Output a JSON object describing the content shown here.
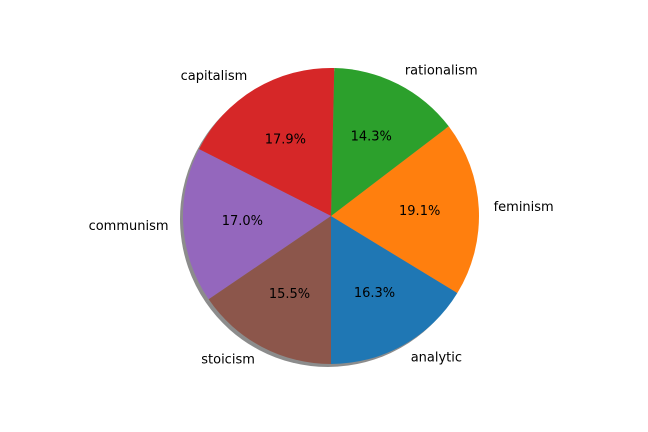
{
  "chart_data": {
    "type": "pie",
    "title": "",
    "categories": [
      "analytic",
      "feminism",
      "rationalism",
      "capitalism",
      "communism",
      "stoicism"
    ],
    "values": [
      16.3,
      19.1,
      14.3,
      17.9,
      17.0,
      15.5
    ],
    "value_labels": [
      "16.3%",
      "19.1%",
      "14.3%",
      "17.9%",
      "17.0%",
      "15.5%"
    ],
    "colors": [
      "#1f77b4",
      "#ff7f0e",
      "#2ca02c",
      "#d62728",
      "#9467bd",
      "#8c564b"
    ],
    "start_angle_deg": 270,
    "direction": "counterclockwise",
    "shadow": true,
    "legend": "none"
  }
}
